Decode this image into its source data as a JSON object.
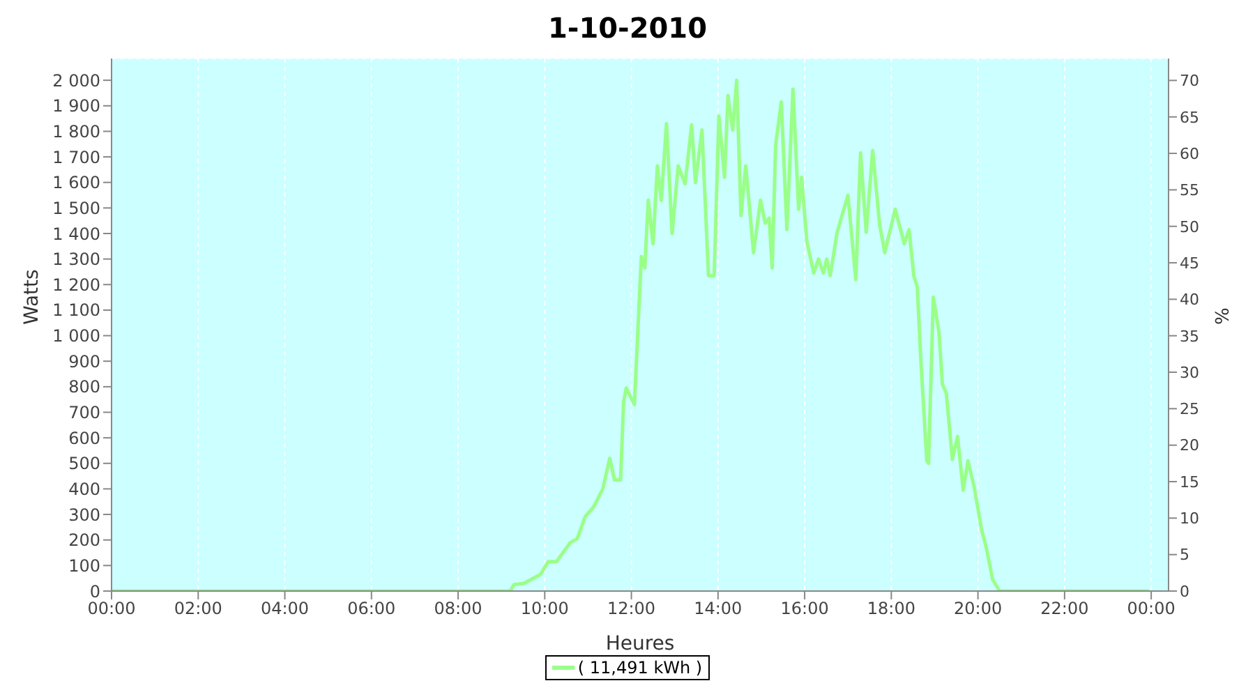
{
  "chart_data": {
    "type": "line",
    "title": "1-10-2010",
    "xlabel": "Heures",
    "ylabel": "Watts",
    "y2label": "%",
    "xlim": [
      0,
      24.4
    ],
    "xticks": [
      {
        "value": 0,
        "label": "00:00"
      },
      {
        "value": 2,
        "label": "02:00"
      },
      {
        "value": 4,
        "label": "04:00"
      },
      {
        "value": 6,
        "label": "06:00"
      },
      {
        "value": 8,
        "label": "08:00"
      },
      {
        "value": 10,
        "label": "10:00"
      },
      {
        "value": 12,
        "label": "12:00"
      },
      {
        "value": 14,
        "label": "14:00"
      },
      {
        "value": 16,
        "label": "16:00"
      },
      {
        "value": 18,
        "label": "18:00"
      },
      {
        "value": 20,
        "label": "20:00"
      },
      {
        "value": 22,
        "label": "22:00"
      },
      {
        "value": 24,
        "label": "00:00"
      }
    ],
    "ylim": [
      0,
      2085
    ],
    "yticks": [
      0,
      100,
      200,
      300,
      400,
      500,
      600,
      700,
      800,
      900,
      {
        "value": 1000,
        "label": "1 000"
      },
      {
        "value": 1100,
        "label": "1 100"
      },
      {
        "value": 1200,
        "label": "1 200"
      },
      {
        "value": 1300,
        "label": "1 300"
      },
      {
        "value": 1400,
        "label": "1 400"
      },
      {
        "value": 1500,
        "label": "1 500"
      },
      {
        "value": 1600,
        "label": "1 600"
      },
      {
        "value": 1700,
        "label": "1 700"
      },
      {
        "value": 1800,
        "label": "1 800"
      },
      {
        "value": 1900,
        "label": "1 900"
      },
      {
        "value": 2000,
        "label": "2 000"
      }
    ],
    "y2lim": [
      0,
      73
    ],
    "y2ticks": [
      0,
      5,
      10,
      15,
      20,
      25,
      30,
      35,
      40,
      45,
      50,
      55,
      60,
      65,
      70
    ],
    "grid": true,
    "legend": "bottom",
    "marker": "none",
    "line_style": "solid",
    "series": [
      {
        "name": "( 11,491 kWh )",
        "color": "#99ff88",
        "x": [
          0,
          9.2,
          9.29,
          9.52,
          9.68,
          9.9,
          10.08,
          10.27,
          10.59,
          10.75,
          10.93,
          11.13,
          11.34,
          11.5,
          11.61,
          11.75,
          11.82,
          11.88,
          12.07,
          12.23,
          12.31,
          12.39,
          12.5,
          12.6,
          12.69,
          12.81,
          12.94,
          13.08,
          13.24,
          13.39,
          13.48,
          13.63,
          13.78,
          13.91,
          14.02,
          14.15,
          14.23,
          14.34,
          14.43,
          14.53,
          14.64,
          14.82,
          14.98,
          15.09,
          15.18,
          15.25,
          15.33,
          15.46,
          15.59,
          15.73,
          15.86,
          15.93,
          16.05,
          16.21,
          16.32,
          16.43,
          16.51,
          16.59,
          16.75,
          17.0,
          17.18,
          17.29,
          17.42,
          17.57,
          17.73,
          17.85,
          18.09,
          18.3,
          18.41,
          18.52,
          18.6,
          18.68,
          18.82,
          18.86,
          18.97,
          19.1,
          19.18,
          19.27,
          19.41,
          19.53,
          19.66,
          19.77,
          19.91,
          20.09,
          20.18,
          20.34,
          20.5,
          23.95
        ],
        "values": [
          0,
          0,
          25,
          30,
          45,
          65,
          115,
          115,
          190,
          205,
          290,
          330,
          400,
          520,
          435,
          435,
          740,
          795,
          730,
          1310,
          1265,
          1530,
          1360,
          1665,
          1530,
          1830,
          1400,
          1665,
          1595,
          1825,
          1600,
          1805,
          1235,
          1235,
          1860,
          1620,
          1940,
          1805,
          2000,
          1470,
          1665,
          1325,
          1530,
          1440,
          1460,
          1265,
          1745,
          1915,
          1415,
          1965,
          1495,
          1620,
          1370,
          1245,
          1300,
          1245,
          1300,
          1235,
          1405,
          1550,
          1220,
          1715,
          1405,
          1725,
          1435,
          1325,
          1495,
          1360,
          1415,
          1235,
          1190,
          910,
          510,
          500,
          1150,
          1015,
          810,
          775,
          515,
          605,
          395,
          510,
          410,
          235,
          180,
          45,
          0,
          0
        ]
      }
    ]
  }
}
